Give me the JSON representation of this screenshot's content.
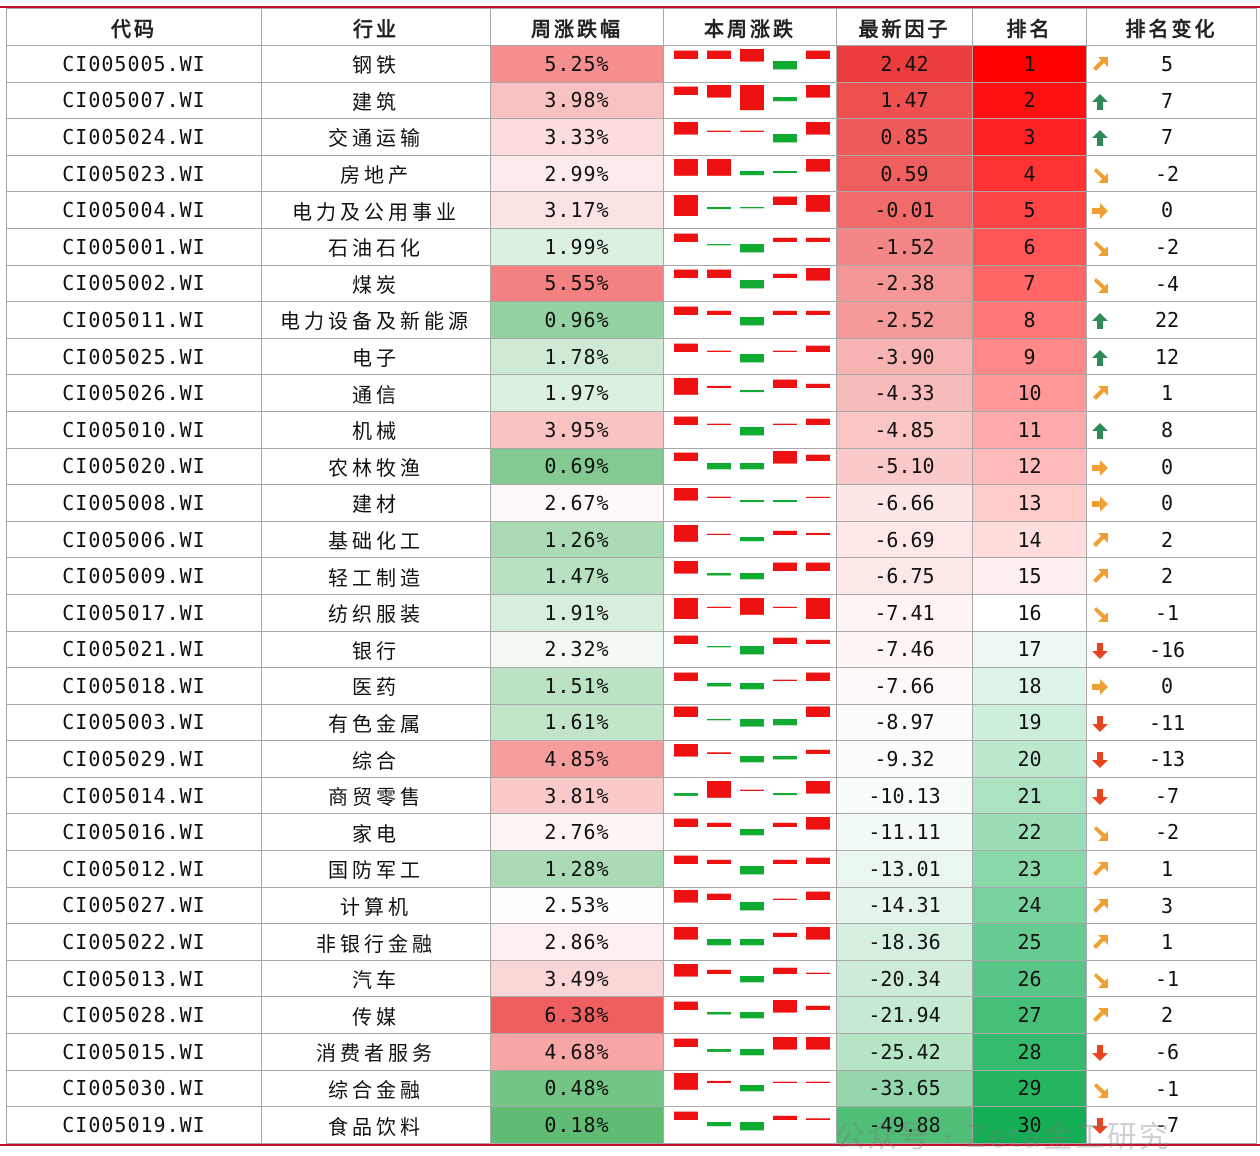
{
  "headers": [
    "代码",
    "行业",
    "周涨跌幅",
    "本周涨跌",
    "最新因子",
    "排名",
    "排名变化"
  ],
  "colors": {
    "red_strong": "#ff1a1a",
    "green_strong": "#19b35a",
    "arrow_up": "#2e8b57",
    "arrow_down": "#e8451f",
    "arrow_diag": "#f0a030",
    "spark_red": "#ee1111",
    "spark_green": "#11aa33"
  },
  "rows": [
    {
      "code": "CI005005.WI",
      "industry": "钢铁",
      "pct": "5.25%",
      "factor": "2.42",
      "rank": "1",
      "change": "5",
      "arrow": "up-right",
      "spark": [
        2,
        2,
        3,
        -2,
        2
      ]
    },
    {
      "code": "CI005007.WI",
      "industry": "建筑",
      "pct": "3.98%",
      "factor": "1.47",
      "rank": "2",
      "change": "7",
      "arrow": "up",
      "spark": [
        2,
        3,
        6,
        -1,
        3
      ]
    },
    {
      "code": "CI005024.WI",
      "industry": "交通运输",
      "pct": "3.33%",
      "factor": "0.85",
      "rank": "3",
      "change": "7",
      "arrow": "up",
      "spark": [
        3,
        0.3,
        0.3,
        -2,
        3
      ]
    },
    {
      "code": "CI005023.WI",
      "industry": "房地产",
      "pct": "2.99%",
      "factor": "0.59",
      "rank": "4",
      "change": "-2",
      "arrow": "down-right",
      "spark": [
        4,
        4,
        -1,
        -0.5,
        3
      ]
    },
    {
      "code": "CI005004.WI",
      "industry": "电力及公用事业",
      "pct": "3.17%",
      "factor": "-0.01",
      "rank": "5",
      "change": "0",
      "arrow": "right",
      "spark": [
        5,
        -0.5,
        -0.3,
        2,
        4
      ]
    },
    {
      "code": "CI005001.WI",
      "industry": "石油石化",
      "pct": "1.99%",
      "factor": "-1.52",
      "rank": "6",
      "change": "-2",
      "arrow": "down-right",
      "spark": [
        2,
        -0.3,
        -2,
        1,
        1
      ]
    },
    {
      "code": "CI005002.WI",
      "industry": "煤炭",
      "pct": "5.55%",
      "factor": "-2.38",
      "rank": "7",
      "change": "-4",
      "arrow": "down-right",
      "spark": [
        2,
        2,
        -2,
        1,
        3
      ]
    },
    {
      "code": "CI005011.WI",
      "industry": "电力设备及新能源",
      "pct": "0.96%",
      "factor": "-2.52",
      "rank": "8",
      "change": "22",
      "arrow": "up",
      "spark": [
        2,
        1,
        -2,
        1,
        1
      ]
    },
    {
      "code": "CI005025.WI",
      "industry": "电子",
      "pct": "1.78%",
      "factor": "-3.90",
      "rank": "9",
      "change": "12",
      "arrow": "up",
      "spark": [
        2,
        0.3,
        -2,
        0.3,
        1.5
      ]
    },
    {
      "code": "CI005026.WI",
      "industry": "通信",
      "pct": "1.97%",
      "factor": "-4.33",
      "rank": "10",
      "change": "1",
      "arrow": "up-right",
      "spark": [
        4,
        0.5,
        -0.5,
        2,
        1
      ]
    },
    {
      "code": "CI005010.WI",
      "industry": "机械",
      "pct": "3.95%",
      "factor": "-4.85",
      "rank": "11",
      "change": "8",
      "arrow": "up",
      "spark": [
        2,
        0.3,
        -2,
        0.3,
        1.5
      ]
    },
    {
      "code": "CI005020.WI",
      "industry": "农林牧渔",
      "pct": "0.69%",
      "factor": "-5.10",
      "rank": "12",
      "change": "0",
      "arrow": "right",
      "spark": [
        2,
        -1.5,
        -1.5,
        3,
        1.5
      ]
    },
    {
      "code": "CI005008.WI",
      "industry": "建材",
      "pct": "2.67%",
      "factor": "-6.66",
      "rank": "13",
      "change": "0",
      "arrow": "right",
      "spark": [
        3,
        0.3,
        -0.5,
        -0.5,
        0.2
      ]
    },
    {
      "code": "CI005006.WI",
      "industry": "基础化工",
      "pct": "1.26%",
      "factor": "-6.69",
      "rank": "14",
      "change": "2",
      "arrow": "up-right",
      "spark": [
        4,
        0,
        -1,
        1,
        0.5
      ]
    },
    {
      "code": "CI005009.WI",
      "industry": "轻工制造",
      "pct": "1.47%",
      "factor": "-6.75",
      "rank": "15",
      "change": "2",
      "arrow": "up-right",
      "spark": [
        3,
        -0.6,
        -1.5,
        2,
        2
      ]
    },
    {
      "code": "CI005017.WI",
      "industry": "纺织服装",
      "pct": "1.91%",
      "factor": "-7.41",
      "rank": "16",
      "change": "-1",
      "arrow": "down-right",
      "spark": [
        5,
        0,
        4,
        0,
        5
      ]
    },
    {
      "code": "CI005021.WI",
      "industry": "银行",
      "pct": "2.32%",
      "factor": "-7.46",
      "rank": "17",
      "change": "-16",
      "arrow": "down",
      "spark": [
        2,
        -0.3,
        -2,
        1.5,
        1
      ]
    },
    {
      "code": "CI005018.WI",
      "industry": "医药",
      "pct": "1.51%",
      "factor": "-7.66",
      "rank": "18",
      "change": "0",
      "arrow": "right",
      "spark": [
        2,
        -0.8,
        -1.5,
        0.3,
        2
      ]
    },
    {
      "code": "CI005003.WI",
      "industry": "有色金属",
      "pct": "1.61%",
      "factor": "-8.97",
      "rank": "19",
      "change": "-11",
      "arrow": "down",
      "spark": [
        2.5,
        -0.3,
        -1.8,
        -1.5,
        2.5
      ]
    },
    {
      "code": "CI005029.WI",
      "industry": "综合",
      "pct": "4.85%",
      "factor": "-9.32",
      "rank": "20",
      "change": "-13",
      "arrow": "down",
      "spark": [
        3,
        0.4,
        -1.5,
        -0.8,
        1
      ]
    },
    {
      "code": "CI005014.WI",
      "industry": "商贸零售",
      "pct": "3.81%",
      "factor": "-10.13",
      "rank": "21",
      "change": "-7",
      "arrow": "down",
      "spark": [
        -0.7,
        4,
        0.3,
        -0.5,
        3
      ]
    },
    {
      "code": "CI005016.WI",
      "industry": "家电",
      "pct": "2.76%",
      "factor": "-11.11",
      "rank": "22",
      "change": "-2",
      "arrow": "down-right",
      "spark": [
        2,
        1,
        -1.5,
        1,
        3
      ]
    },
    {
      "code": "CI005012.WI",
      "industry": "国防军工",
      "pct": "1.28%",
      "factor": "-13.01",
      "rank": "23",
      "change": "1",
      "arrow": "up-right",
      "spark": [
        2,
        1,
        -2,
        1,
        1.5
      ]
    },
    {
      "code": "CI005027.WI",
      "industry": "计算机",
      "pct": "2.53%",
      "factor": "-14.31",
      "rank": "24",
      "change": "3",
      "arrow": "up-right",
      "spark": [
        3,
        1.5,
        -2,
        0.3,
        2
      ]
    },
    {
      "code": "CI005022.WI",
      "industry": "非银行金融",
      "pct": "2.86%",
      "factor": "-18.36",
      "rank": "25",
      "change": "1",
      "arrow": "up-right",
      "spark": [
        3,
        -1.5,
        -1.5,
        1,
        3
      ]
    },
    {
      "code": "CI005013.WI",
      "industry": "汽车",
      "pct": "3.49%",
      "factor": "-20.34",
      "rank": "26",
      "change": "-1",
      "arrow": "down-right",
      "spark": [
        3,
        1,
        -1.5,
        1.5,
        0.3
      ]
    },
    {
      "code": "CI005028.WI",
      "industry": "传媒",
      "pct": "6.38%",
      "factor": "-21.94",
      "rank": "27",
      "change": "2",
      "arrow": "up-right",
      "spark": [
        2,
        -0.6,
        -1.5,
        3,
        1
      ]
    },
    {
      "code": "CI005015.WI",
      "industry": "消费者服务",
      "pct": "4.68%",
      "factor": "-25.42",
      "rank": "28",
      "change": "-6",
      "arrow": "down",
      "spark": [
        2,
        -0.7,
        -1.5,
        3,
        3
      ]
    },
    {
      "code": "CI005030.WI",
      "industry": "综合金融",
      "pct": "0.48%",
      "factor": "-33.65",
      "rank": "29",
      "change": "-1",
      "arrow": "down-right",
      "spark": [
        4,
        0.5,
        -1.5,
        0.3,
        0.3
      ]
    },
    {
      "code": "CI005019.WI",
      "industry": "食品饮料",
      "pct": "0.18%",
      "factor": "-49.88",
      "rank": "30",
      "change": "-7",
      "arrow": "down",
      "spark": [
        2,
        -1,
        -2,
        1,
        0.4
      ]
    }
  ],
  "watermark": "公众号 · Zeta金工研究"
}
